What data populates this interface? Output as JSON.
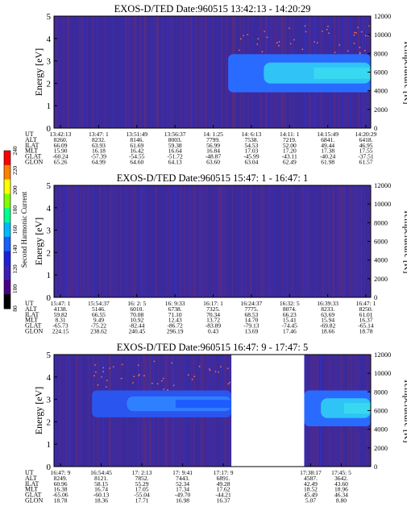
{
  "colorbar": {
    "label": "Second Harmonic Current",
    "ticks": [
      "80",
      "100",
      "120",
      "140",
      "160",
      "180",
      "200",
      "220",
      "240"
    ],
    "colors": [
      "#000000",
      "#4b0082",
      "#3c1fb4",
      "#2020d8",
      "#1560ff",
      "#00b8ff",
      "#00ff90",
      "#80ff00",
      "#ffff00",
      "#ff8000",
      "#ff0000"
    ]
  },
  "chart_data": [
    {
      "type": "heatmap",
      "title": "EXOS-D/TED   Date:960515  13:42:13 - 14:20:29",
      "ylabel": "Energy [eV]",
      "y2label": "Temperature [K]",
      "ylim": [
        0,
        5
      ],
      "y2lim": [
        0,
        12000
      ],
      "yticks": [
        "0",
        "1",
        "2",
        "3",
        "4",
        "5"
      ],
      "y2ticks": [
        "0",
        "2000",
        "4000",
        "6000",
        "8000",
        "10000",
        "12000"
      ],
      "data_gaps": [],
      "bands": [
        {
          "x_start": 0.55,
          "x_end": 1.0,
          "e_low": 1.6,
          "e_high": 3.3,
          "level": "high"
        }
      ],
      "table": {
        "labels": [
          "UT",
          "ALT",
          "ILAT",
          "MLT",
          "GLAT",
          "GLON"
        ],
        "columns": [
          [
            "13:42:13",
            "8260.",
            "66.09",
            "15.90",
            "-60.24",
            "65.26"
          ],
          [
            "13:47: 1",
            "8232.",
            "63.93",
            "16.18",
            "-57.39",
            "64.99"
          ],
          [
            "13:51:49",
            "8146.",
            "61.69",
            "16.42",
            "-54.55",
            "64.60"
          ],
          [
            "13:56:37",
            "8003.",
            "59.38",
            "16.64",
            "-51.72",
            "64.13"
          ],
          [
            "14: 1:25",
            "7799.",
            "56.99",
            "16.84",
            "-48.87",
            "63.60"
          ],
          [
            "14: 6:13",
            "7538.",
            "54.53",
            "17.03",
            "-45.99",
            "63.04"
          ],
          [
            "14:11: 1",
            "7219.",
            "52.00",
            "17.20",
            "-43.11",
            "62.49"
          ],
          [
            "14:15:49",
            "6841.",
            "49.44",
            "17.38",
            "-40.24",
            "61.98"
          ],
          [
            "14:20:29",
            "6418.",
            "46.95",
            "17.55",
            "-37.51",
            "61.57"
          ]
        ]
      }
    },
    {
      "type": "heatmap",
      "title": "EXOS-D/TED   Date:960515  15:47: 1 - 16:47: 1",
      "ylabel": "Energy [eV]",
      "y2label": "Temperature [K]",
      "ylim": [
        0,
        5
      ],
      "y2lim": [
        0,
        12000
      ],
      "yticks": [
        "0",
        "1",
        "2",
        "3",
        "4",
        "5"
      ],
      "y2ticks": [
        "0",
        "2000",
        "4000",
        "6000",
        "8000",
        "10000",
        "12000"
      ],
      "data_gaps": [],
      "bands": [],
      "table": {
        "labels": [
          "UT",
          "ALT",
          "ILAT",
          "MLT",
          "GLAT",
          "GLON"
        ],
        "columns": [
          [
            "15:47: 1",
            "4138.",
            "59.82",
            "8.31",
            "-65.73",
            "224.15"
          ],
          [
            "15:54:37",
            "5146.",
            "66.55",
            "9.49",
            "-75.22",
            "238.62"
          ],
          [
            "16: 2: 5",
            "6010.",
            "70.08",
            "10.92",
            "-82.44",
            "240.45"
          ],
          [
            "16: 9:33",
            "6738.",
            "71.10",
            "12.43",
            "-86.72",
            "296.19"
          ],
          [
            "16:17: 1",
            "7325.",
            "70.34",
            "13.72",
            "-83.89",
            "0.43"
          ],
          [
            "16:24:37",
            "7775.",
            "68.53",
            "14.70",
            "-79.13",
            "13.69"
          ],
          [
            "16:32: 5",
            "8074.",
            "66.23",
            "15.41",
            "-74.45",
            "17.46"
          ],
          [
            "16:39:33",
            "8233.",
            "63.69",
            "15.94",
            "-69.82",
            "18.66"
          ],
          [
            "16:47: 1",
            "8250.",
            "61.01",
            "16.37",
            "-65.14",
            "18.78"
          ]
        ]
      }
    },
    {
      "type": "heatmap",
      "title": "EXOS-D/TED   Date:960515  16:47: 9 - 17:47: 5",
      "ylabel": "Energy [eV]",
      "y2label": "Temperature [K]",
      "ylim": [
        0,
        5
      ],
      "y2lim": [
        0,
        12000
      ],
      "yticks": [
        "0",
        "1",
        "2",
        "3",
        "4",
        "5"
      ],
      "y2ticks": [
        "0",
        "2000",
        "4000",
        "6000",
        "8000",
        "10000",
        "12000"
      ],
      "data_gaps": [
        [
          0.56,
          0.79
        ]
      ],
      "bands": [
        {
          "x_start": 0.12,
          "x_end": 0.56,
          "e_low": 2.2,
          "e_high": 3.4,
          "level": "mid"
        },
        {
          "x_start": 0.79,
          "x_end": 1.0,
          "e_low": 1.8,
          "e_high": 3.4,
          "level": "high"
        }
      ],
      "table": {
        "labels": [
          "UT",
          "ALT",
          "ILAT",
          "MLT",
          "GLAT",
          "GLON"
        ],
        "columns": [
          [
            "16:47: 9",
            "8249.",
            "60.96",
            "16.38",
            "-65.06",
            "18.78"
          ],
          [
            "16:54:45",
            "8121.",
            "58.15",
            "16.74",
            "-60.13",
            "18.36"
          ],
          [
            "17: 2:13",
            "7852.",
            "55.29",
            "17.05",
            "-55.04",
            "17.71"
          ],
          [
            "17: 9:41",
            "7443.",
            "52.34",
            "17.34",
            "-49.70",
            "16.98"
          ],
          [
            "17:17: 9",
            "6891.",
            "49.28",
            "17.62",
            "-44.21",
            "16.37"
          ],
          [
            "17:38:17",
            "4587.",
            "42.49",
            "18.52",
            "45.49",
            "5.07"
          ],
          [
            "17:45: 5",
            "3642.",
            "43.60",
            "18.96",
            "46.34",
            "8.80"
          ]
        ]
      }
    }
  ]
}
